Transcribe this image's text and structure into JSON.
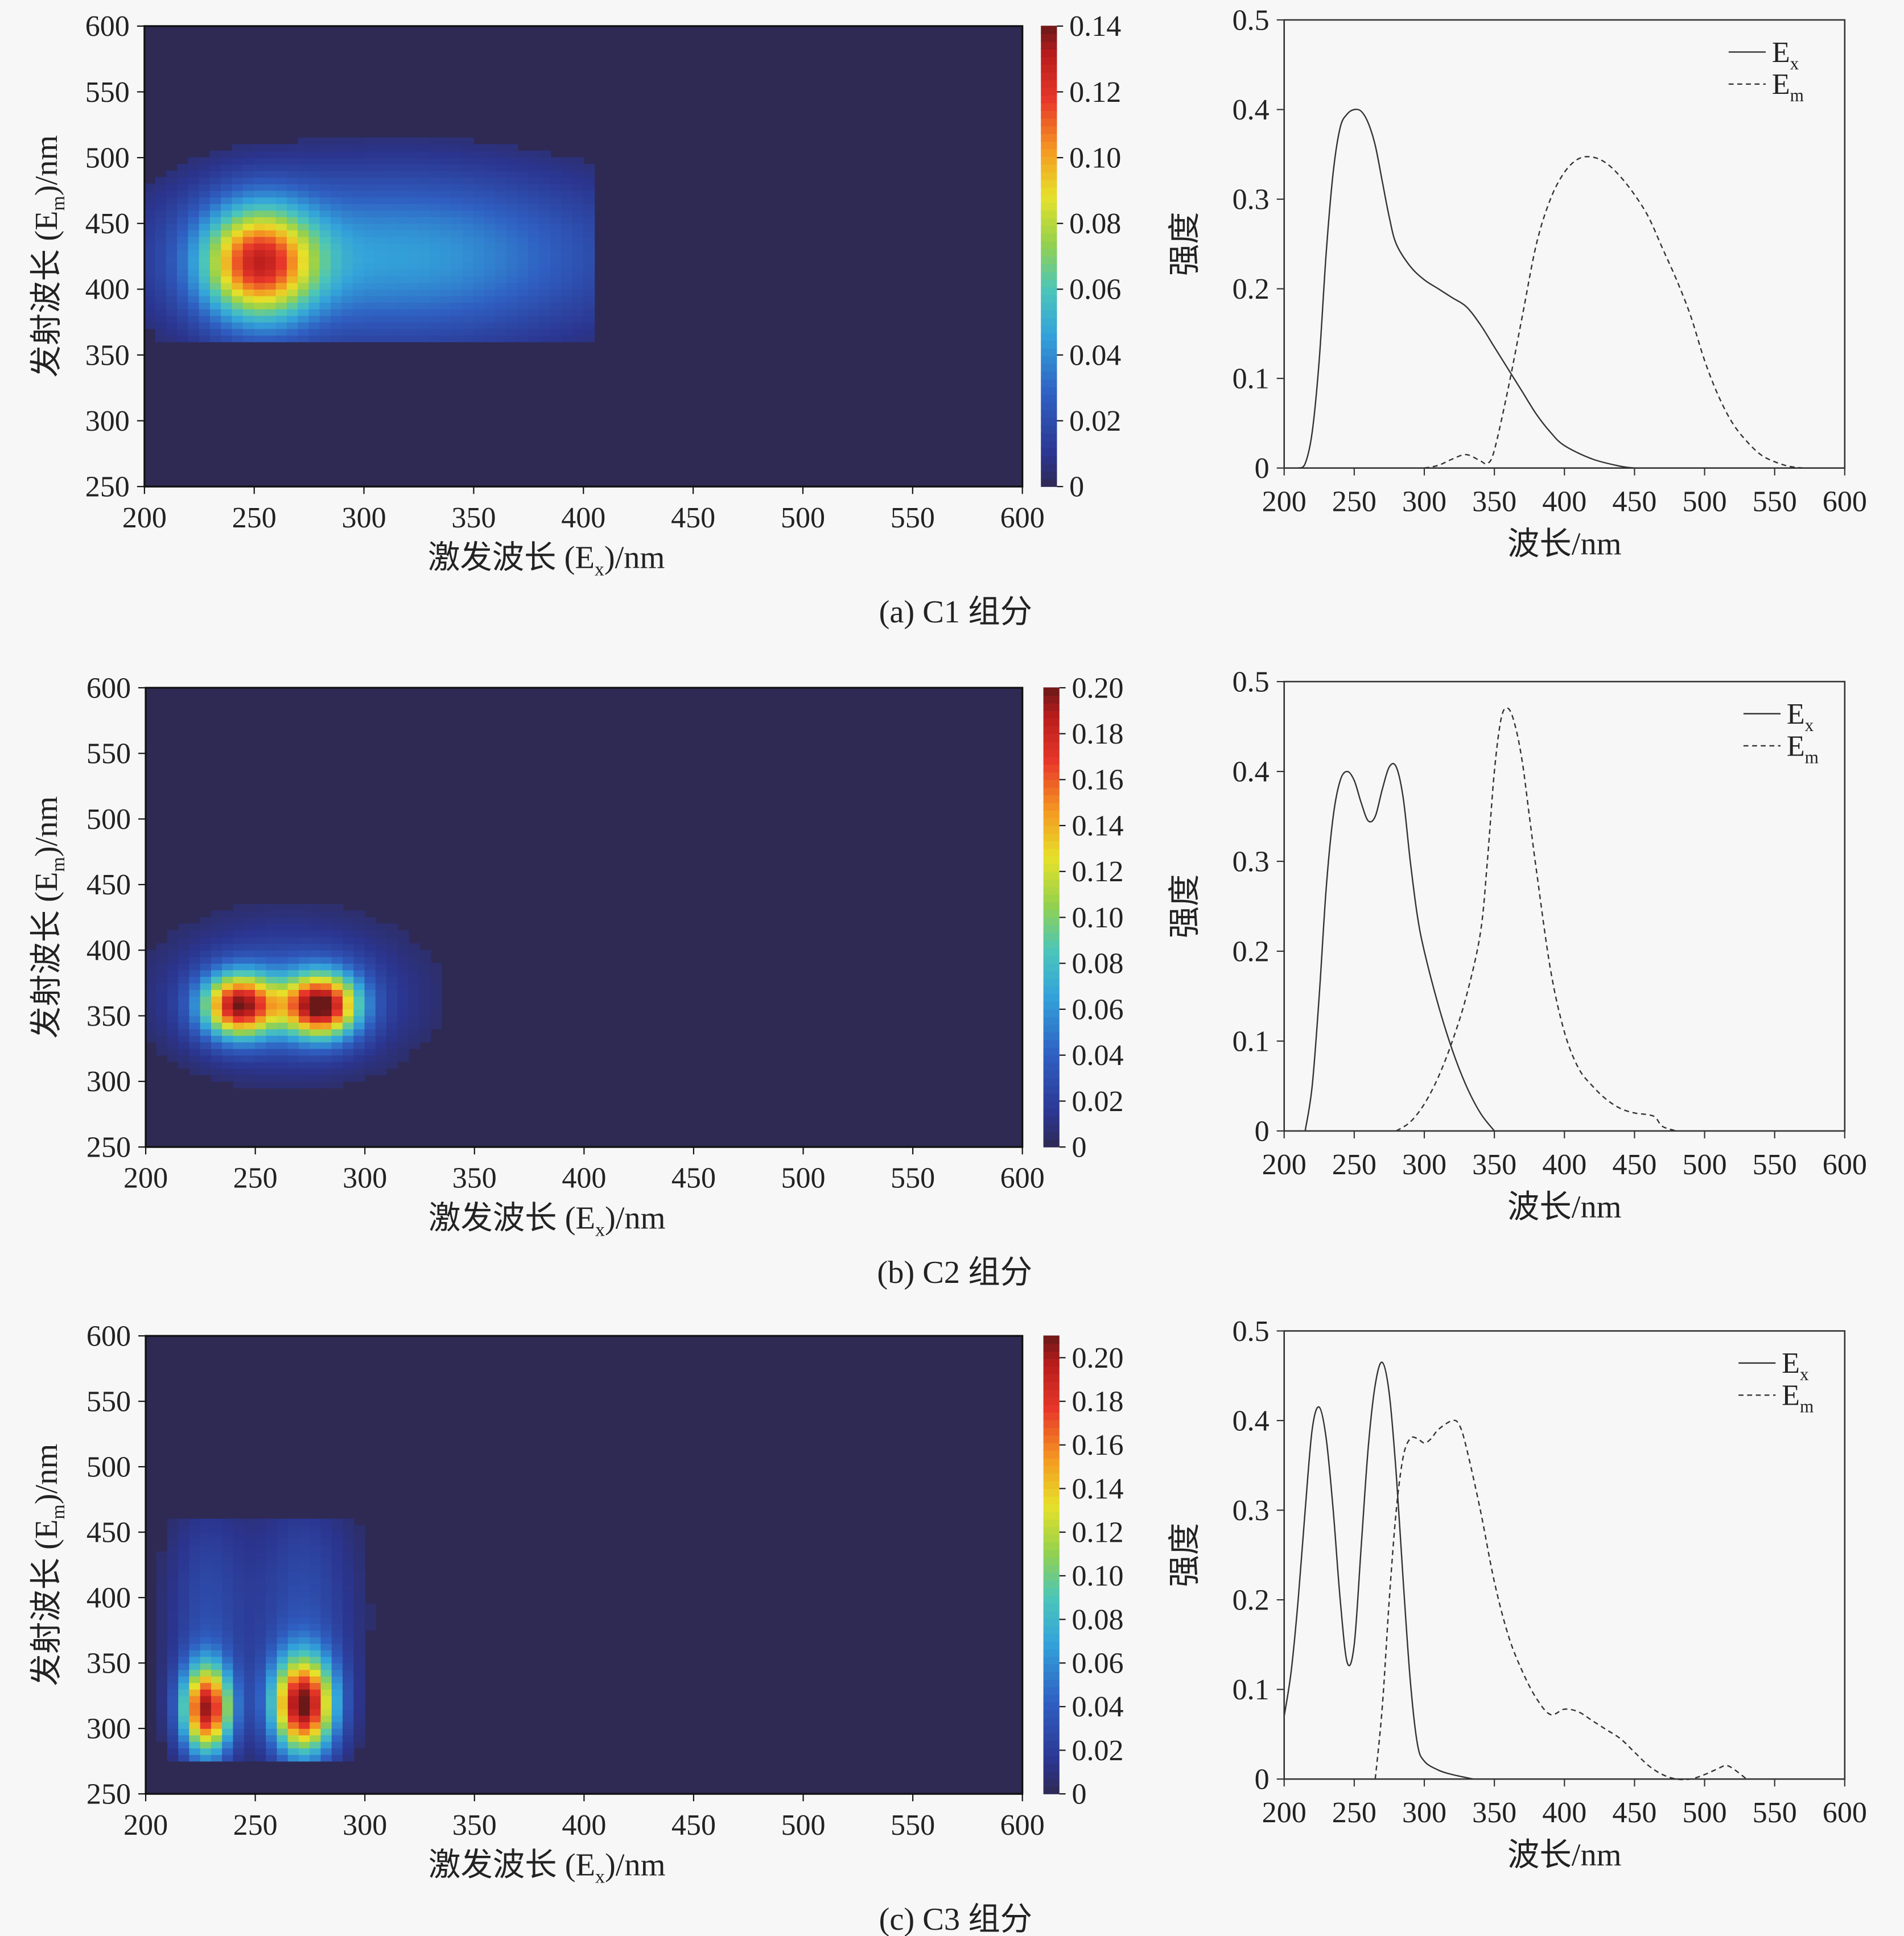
{
  "chart_data": [
    {
      "type": "heatmap",
      "caption": "(a) C1 组分",
      "xlabel": {
        "pre": "激发波长 (E",
        "sub": "x",
        "post": ")/nm"
      },
      "ylabel": {
        "pre": "发射波长 (E",
        "sub": "m",
        "post": ")/nm"
      },
      "xlim": [
        200,
        600
      ],
      "ylim": [
        250,
        600
      ],
      "xticks": [
        200,
        250,
        300,
        350,
        400,
        450,
        500,
        550,
        600
      ],
      "yticks": [
        250,
        300,
        350,
        400,
        450,
        500,
        550,
        600
      ],
      "colorbar": {
        "range": [
          0,
          0.14
        ],
        "ticks": [
          "0",
          "0.02",
          "0.04",
          "0.06",
          "0.08",
          "0.10",
          "0.12",
          "0.14"
        ],
        "tick_values": [
          0,
          0.02,
          0.04,
          0.06,
          0.08,
          0.1,
          0.12,
          0.14
        ]
      },
      "em_min": 360,
      "em_max": 540,
      "ex_max": 405,
      "peaks": [
        {
          "ex": 252,
          "em": 420,
          "sx": 18,
          "sm": 30,
          "amp": 0.1
        },
        {
          "ex": 315,
          "em": 425,
          "sx": 70,
          "sm": 45,
          "amp": 0.045
        }
      ]
    },
    {
      "type": "line",
      "xlabel": "波长/nm",
      "ylabel": "强度",
      "xlim": [
        200,
        600
      ],
      "ylim": [
        0,
        0.5
      ],
      "xticks": [
        200,
        250,
        300,
        350,
        400,
        450,
        500,
        550,
        600
      ],
      "yticks": [
        "0",
        "0.1",
        "0.2",
        "0.3",
        "0.4",
        "0.5"
      ],
      "ytick_values": [
        0,
        0.1,
        0.2,
        0.3,
        0.4,
        0.5
      ],
      "legend": [
        {
          "pre": "E",
          "sub": "x",
          "style": "solid"
        },
        {
          "pre": "E",
          "sub": "m",
          "style": "dashed"
        }
      ],
      "series": [
        {
          "name": "Ex",
          "x": [
            210,
            215,
            220,
            225,
            230,
            235,
            240,
            245,
            250,
            255,
            260,
            265,
            270,
            275,
            280,
            290,
            300,
            310,
            320,
            330,
            340,
            350,
            360,
            370,
            380,
            390,
            400,
            420,
            440,
            450
          ],
          "y": [
            0,
            0.005,
            0.04,
            0.12,
            0.24,
            0.33,
            0.38,
            0.395,
            0.4,
            0.398,
            0.385,
            0.36,
            0.32,
            0.28,
            0.25,
            0.225,
            0.21,
            0.2,
            0.19,
            0.18,
            0.16,
            0.135,
            0.11,
            0.085,
            0.06,
            0.04,
            0.025,
            0.01,
            0.002,
            0
          ]
        },
        {
          "name": "Em",
          "x": [
            300,
            310,
            320,
            330,
            340,
            345,
            350,
            360,
            370,
            380,
            390,
            400,
            410,
            420,
            430,
            440,
            450,
            460,
            470,
            480,
            490,
            500,
            510,
            520,
            530,
            540,
            550,
            560,
            570
          ],
          "y": [
            0,
            0.003,
            0.01,
            0.015,
            0.008,
            0.005,
            0.02,
            0.09,
            0.17,
            0.25,
            0.3,
            0.33,
            0.345,
            0.347,
            0.34,
            0.325,
            0.305,
            0.28,
            0.245,
            0.21,
            0.17,
            0.12,
            0.08,
            0.05,
            0.03,
            0.015,
            0.007,
            0.002,
            0
          ]
        }
      ]
    },
    {
      "type": "heatmap",
      "caption": "(b) C2 组分",
      "xlabel": {
        "pre": "激发波长 (E",
        "sub": "x",
        "post": ")/nm"
      },
      "ylabel": {
        "pre": "发射波长 (E",
        "sub": "m",
        "post": ")/nm"
      },
      "xlim": [
        200,
        600
      ],
      "ylim": [
        250,
        600
      ],
      "xticks": [
        200,
        250,
        300,
        350,
        400,
        450,
        500,
        550,
        600
      ],
      "yticks": [
        250,
        300,
        350,
        400,
        450,
        500,
        550,
        600
      ],
      "colorbar": {
        "range": [
          0,
          0.2
        ],
        "ticks": [
          "0",
          "0.02",
          "0.04",
          "0.06",
          "0.08",
          "0.10",
          "0.12",
          "0.14",
          "0.16",
          "0.18",
          "0.20"
        ],
        "tick_values": [
          0,
          0.02,
          0.04,
          0.06,
          0.08,
          0.1,
          0.12,
          0.14,
          0.16,
          0.18,
          0.2
        ]
      },
      "em_min": 290,
      "em_max": 435,
      "ex_max": 335,
      "peaks": [
        {
          "ex": 243,
          "em": 358,
          "sx": 12,
          "sm": 17,
          "amp": 0.17
        },
        {
          "ex": 280,
          "em": 358,
          "sx": 12,
          "sm": 17,
          "amp": 0.18
        },
        {
          "ex": 265,
          "em": 365,
          "sx": 38,
          "sm": 38,
          "amp": 0.035
        }
      ]
    },
    {
      "type": "line",
      "xlabel": "波长/nm",
      "ylabel": "强度",
      "xlim": [
        200,
        600
      ],
      "ylim": [
        0,
        0.5
      ],
      "xticks": [
        200,
        250,
        300,
        350,
        400,
        450,
        500,
        550,
        600
      ],
      "yticks": [
        "0",
        "0.1",
        "0.2",
        "0.3",
        "0.4",
        "0.5"
      ],
      "ytick_values": [
        0,
        0.1,
        0.2,
        0.3,
        0.4,
        0.5
      ],
      "legend": [
        {
          "pre": "E",
          "sub": "x",
          "style": "solid"
        },
        {
          "pre": "E",
          "sub": "m",
          "style": "dashed"
        }
      ],
      "series": [
        {
          "name": "Ex",
          "x": [
            215,
            220,
            225,
            230,
            235,
            240,
            245,
            250,
            255,
            260,
            265,
            270,
            275,
            280,
            285,
            290,
            295,
            300,
            310,
            320,
            330,
            340,
            350
          ],
          "y": [
            0,
            0.05,
            0.15,
            0.27,
            0.35,
            0.39,
            0.4,
            0.39,
            0.365,
            0.345,
            0.35,
            0.38,
            0.405,
            0.405,
            0.37,
            0.3,
            0.24,
            0.2,
            0.14,
            0.09,
            0.05,
            0.02,
            0
          ]
        },
        {
          "name": "Em",
          "x": [
            280,
            290,
            300,
            310,
            320,
            330,
            340,
            345,
            350,
            355,
            360,
            365,
            370,
            375,
            380,
            390,
            400,
            410,
            420,
            430,
            440,
            450,
            460,
            465,
            470,
            480
          ],
          "y": [
            0,
            0.01,
            0.03,
            0.06,
            0.1,
            0.15,
            0.22,
            0.3,
            0.4,
            0.46,
            0.47,
            0.45,
            0.41,
            0.35,
            0.29,
            0.18,
            0.11,
            0.07,
            0.05,
            0.035,
            0.025,
            0.02,
            0.018,
            0.015,
            0.005,
            0
          ]
        }
      ]
    },
    {
      "type": "heatmap",
      "caption": "(c) C3 组分",
      "xlabel": {
        "pre": "激发波长 (E",
        "sub": "x",
        "post": ")/nm"
      },
      "ylabel": {
        "pre": "发射波长 (E",
        "sub": "m",
        "post": ")/nm"
      },
      "xlim": [
        200,
        600
      ],
      "ylim": [
        250,
        600
      ],
      "xticks": [
        200,
        250,
        300,
        350,
        400,
        450,
        500,
        550,
        600
      ],
      "yticks": [
        250,
        300,
        350,
        400,
        450,
        500,
        550,
        600
      ],
      "colorbar": {
        "range": [
          0,
          0.21
        ],
        "ticks": [
          "0",
          "0.02",
          "0.04",
          "0.06",
          "0.08",
          "0.10",
          "0.12",
          "0.14",
          "0.16",
          "0.18",
          "0.20"
        ],
        "tick_values": [
          0,
          0.02,
          0.04,
          0.06,
          0.08,
          0.1,
          0.12,
          0.14,
          0.16,
          0.18,
          0.2
        ]
      },
      "em_min": 275,
      "em_max": 460,
      "ex_max": 310,
      "peaks": [
        {
          "ex": 228,
          "em": 315,
          "sx": 8,
          "sm": 24,
          "amp": 0.19
        },
        {
          "ex": 272,
          "em": 318,
          "sx": 10,
          "sm": 26,
          "amp": 0.2
        },
        {
          "ex": 228,
          "em": 390,
          "sx": 13,
          "sm": 60,
          "amp": 0.028
        },
        {
          "ex": 272,
          "em": 390,
          "sx": 17,
          "sm": 65,
          "amp": 0.03
        }
      ]
    },
    {
      "type": "line",
      "xlabel": "波长/nm",
      "ylabel": "强度",
      "xlim": [
        200,
        600
      ],
      "ylim": [
        0,
        0.5
      ],
      "xticks": [
        200,
        250,
        300,
        350,
        400,
        450,
        500,
        550,
        600
      ],
      "yticks": [
        "0",
        "0.1",
        "0.2",
        "0.3",
        "0.4",
        "0.5"
      ],
      "ytick_values": [
        0,
        0.1,
        0.2,
        0.3,
        0.4,
        0.5
      ],
      "legend": [
        {
          "pre": "E",
          "sub": "x",
          "style": "solid"
        },
        {
          "pre": "E",
          "sub": "m",
          "style": "dashed"
        }
      ],
      "series": [
        {
          "name": "Ex",
          "x": [
            200,
            205,
            210,
            215,
            220,
            225,
            230,
            235,
            240,
            245,
            250,
            255,
            260,
            265,
            270,
            275,
            280,
            285,
            290,
            295,
            300,
            310,
            320,
            335
          ],
          "y": [
            0.07,
            0.12,
            0.2,
            0.3,
            0.39,
            0.415,
            0.38,
            0.3,
            0.2,
            0.13,
            0.15,
            0.26,
            0.37,
            0.44,
            0.465,
            0.43,
            0.34,
            0.22,
            0.11,
            0.04,
            0.02,
            0.01,
            0.005,
            0
          ]
        },
        {
          "name": "Em",
          "x": [
            265,
            270,
            275,
            280,
            285,
            290,
            295,
            300,
            305,
            310,
            320,
            325,
            330,
            340,
            350,
            360,
            370,
            380,
            390,
            400,
            410,
            420,
            430,
            440,
            450,
            460,
            470,
            480,
            490,
            500,
            510,
            515,
            520,
            530
          ],
          "y": [
            0,
            0.08,
            0.2,
            0.3,
            0.36,
            0.38,
            0.38,
            0.375,
            0.38,
            0.39,
            0.4,
            0.395,
            0.37,
            0.3,
            0.22,
            0.16,
            0.12,
            0.09,
            0.072,
            0.078,
            0.075,
            0.065,
            0.055,
            0.045,
            0.03,
            0.015,
            0.005,
            0,
            0,
            0.005,
            0.012,
            0.015,
            0.012,
            0
          ]
        }
      ]
    }
  ]
}
